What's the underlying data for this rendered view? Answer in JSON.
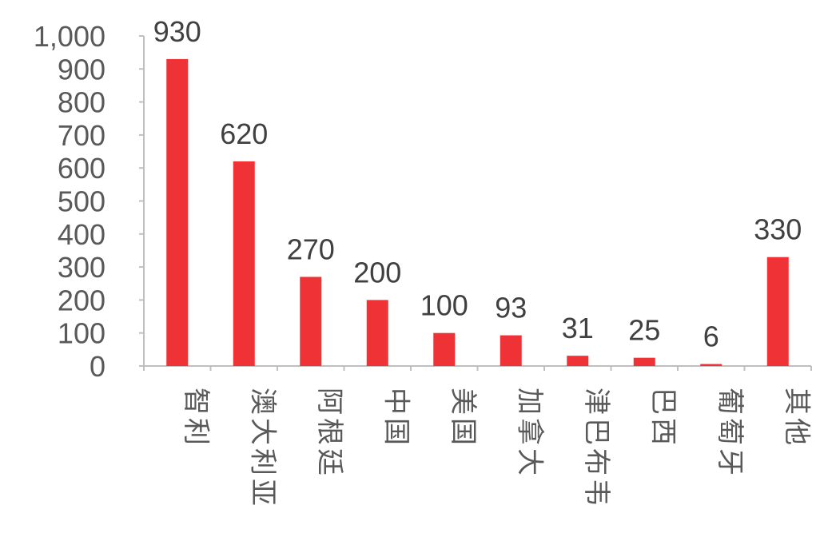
{
  "chart_data": {
    "type": "bar",
    "categories": [
      "智利",
      "澳大利亚",
      "阿根廷",
      "中国",
      "美国",
      "加拿大",
      "津巴布韦",
      "巴西",
      "葡萄牙",
      "其他"
    ],
    "values": [
      930,
      620,
      270,
      200,
      100,
      93,
      31,
      25,
      6,
      330
    ],
    "data_labels": [
      "930",
      "620",
      "270",
      "200",
      "100",
      "93",
      "31",
      "25",
      "6",
      "330"
    ],
    "y_ticks": [
      "0",
      "100",
      "200",
      "300",
      "400",
      "500",
      "600",
      "700",
      "800",
      "900",
      "1,000"
    ],
    "ylim": [
      0,
      1000
    ],
    "bar_color": "#EE3236",
    "axis_color": "#BFBFBF",
    "grid": false,
    "legend": "none"
  }
}
